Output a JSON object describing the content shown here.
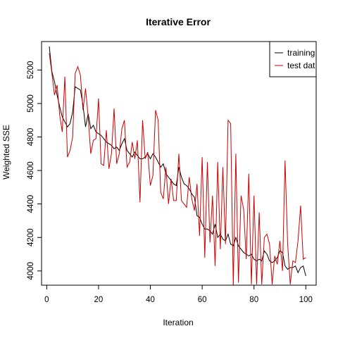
{
  "chart_data": {
    "type": "line",
    "title": "Iterative Error",
    "xlabel": "Iteration",
    "ylabel": "Weighted SSE",
    "xlim": [
      -2,
      104
    ],
    "ylim": [
      3915,
      5370
    ],
    "xticks": [
      0,
      20,
      40,
      60,
      80,
      100
    ],
    "yticks": [
      4000,
      4200,
      4400,
      4600,
      4800,
      5000,
      5200
    ],
    "grid": false,
    "legend_position": "top-right",
    "series": [
      {
        "name": "training",
        "color": "#000000",
        "x_start": 1,
        "values": [
          5340,
          5190,
          5130,
          5050,
          4980,
          4920,
          4890,
          4860,
          4880,
          4950,
          5100,
          5090,
          5080,
          4990,
          4860,
          4940,
          4850,
          4870,
          4830,
          4820,
          4810,
          4790,
          4770,
          4760,
          4750,
          4730,
          4740,
          4720,
          4760,
          4790,
          4720,
          4700,
          4680,
          4710,
          4690,
          4670,
          4670,
          4680,
          4700,
          4670,
          4700,
          4680,
          4650,
          4620,
          4640,
          4580,
          4560,
          4540,
          4520,
          4510,
          4620,
          4560,
          4520,
          4510,
          4490,
          4460,
          4440,
          4330,
          4320,
          4280,
          4250,
          4250,
          4240,
          4220,
          4280,
          4200,
          4220,
          4190,
          4180,
          4220,
          4160,
          4150,
          4200,
          4150,
          4130,
          4110,
          4100,
          4090,
          4100,
          4070,
          4060,
          4070,
          4060,
          4120,
          4100,
          4060,
          4050,
          4060,
          4080,
          4120,
          4110,
          4030,
          4010,
          4020,
          4020,
          4030,
          3990,
          4020,
          4030,
          3970
        ]
      },
      {
        "name": "test dat",
        "color": "#cc0000",
        "x_start": 1,
        "values": [
          5300,
          5180,
          5050,
          5110,
          4930,
          4830,
          5160,
          4680,
          4720,
          4800,
          5180,
          5220,
          5170,
          4960,
          5090,
          4920,
          4700,
          4780,
          4790,
          5030,
          4640,
          4630,
          4840,
          4610,
          4700,
          4970,
          4640,
          4700,
          4850,
          4900,
          4620,
          4650,
          4770,
          4670,
          4780,
          4410,
          4900,
          4670,
          4710,
          4510,
          4570,
          4960,
          4900,
          4470,
          4430,
          4620,
          4400,
          4550,
          4420,
          4420,
          4700,
          4420,
          4400,
          4380,
          4560,
          4430,
          4360,
          4520,
          4210,
          4680,
          4080,
          4650,
          4170,
          4450,
          4030,
          4650,
          4130,
          4620,
          4160,
          4900,
          4880,
          3910,
          4700,
          3930,
          4450,
          4370,
          4070,
          4580,
          3920,
          4450,
          3920,
          4350,
          3920,
          4200,
          4220,
          4160,
          3920,
          4090,
          4040,
          4180,
          4000,
          4660,
          4160,
          3920,
          4060,
          4050,
          4180,
          4390,
          4070,
          4080
        ]
      }
    ]
  }
}
